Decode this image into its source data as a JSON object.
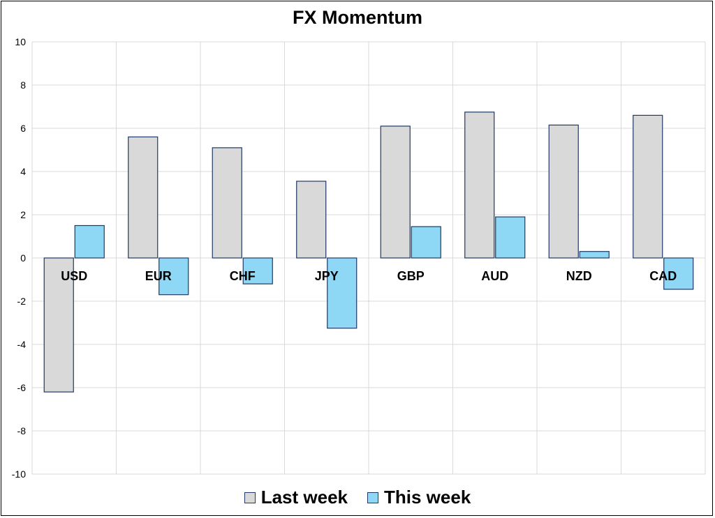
{
  "chart_data": {
    "type": "bar",
    "title": "FX Momentum",
    "xlabel": "",
    "ylabel": "",
    "categories": [
      "USD",
      "EUR",
      "CHF",
      "JPY",
      "GBP",
      "AUD",
      "NZD",
      "CAD"
    ],
    "series": [
      {
        "name": "Last week",
        "color": "#d9d9d9",
        "values": [
          -6.2,
          5.6,
          5.1,
          3.55,
          6.1,
          6.75,
          6.15,
          6.6
        ]
      },
      {
        "name": "This week",
        "color": "#8fd8f5",
        "values": [
          1.5,
          -1.7,
          -1.2,
          -3.25,
          1.45,
          1.9,
          0.3,
          -1.45
        ]
      }
    ],
    "ylim": [
      -10,
      10
    ],
    "yticks": [
      10,
      8,
      6,
      4,
      2,
      0,
      -2,
      -4,
      -6,
      -8,
      -10
    ],
    "grid": true,
    "legend": "bottom",
    "bar_edge_color": "#1f3864"
  }
}
